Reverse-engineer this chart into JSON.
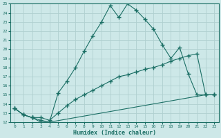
{
  "xlabel": "Humidex (Indice chaleur)",
  "xlim": [
    -0.5,
    23.5
  ],
  "ylim": [
    12,
    25
  ],
  "xticks": [
    0,
    1,
    2,
    3,
    4,
    5,
    6,
    7,
    8,
    9,
    10,
    11,
    12,
    13,
    14,
    15,
    16,
    17,
    18,
    19,
    20,
    21,
    22,
    23
  ],
  "yticks": [
    12,
    13,
    14,
    15,
    16,
    17,
    18,
    19,
    20,
    21,
    22,
    23,
    24,
    25
  ],
  "bg_color": "#cde8e8",
  "line_color": "#1a6e64",
  "grid_color": "#b0d0d0",
  "line1_x": [
    0,
    1,
    2,
    3,
    4,
    5,
    6,
    7,
    8,
    9,
    10,
    11,
    12,
    13,
    14,
    15,
    16,
    17,
    18,
    19,
    20,
    21,
    22,
    23
  ],
  "line1_y": [
    13.5,
    12.8,
    12.5,
    12.0,
    12.0,
    15.2,
    16.5,
    18.0,
    19.8,
    21.5,
    23.0,
    24.8,
    23.5,
    25.0,
    24.3,
    23.3,
    22.2,
    20.5,
    19.0,
    20.2,
    17.3,
    15.0,
    15.0,
    15.0
  ],
  "line2_x": [
    0,
    1,
    2,
    3,
    4,
    5,
    6,
    7,
    8,
    9,
    10,
    11,
    12,
    13,
    14,
    15,
    16,
    17,
    18,
    19,
    20,
    21,
    22,
    23
  ],
  "line2_y": [
    13.5,
    12.8,
    12.5,
    12.5,
    12.2,
    13.0,
    13.8,
    14.5,
    15.0,
    15.5,
    16.0,
    16.5,
    17.0,
    17.2,
    17.5,
    17.8,
    18.0,
    18.3,
    18.7,
    19.0,
    19.3,
    19.5,
    15.0,
    15.0
  ],
  "line3_x": [
    0,
    1,
    2,
    3,
    4,
    22,
    23
  ],
  "line3_y": [
    13.5,
    12.8,
    12.5,
    12.2,
    12.0,
    15.0,
    15.0
  ]
}
